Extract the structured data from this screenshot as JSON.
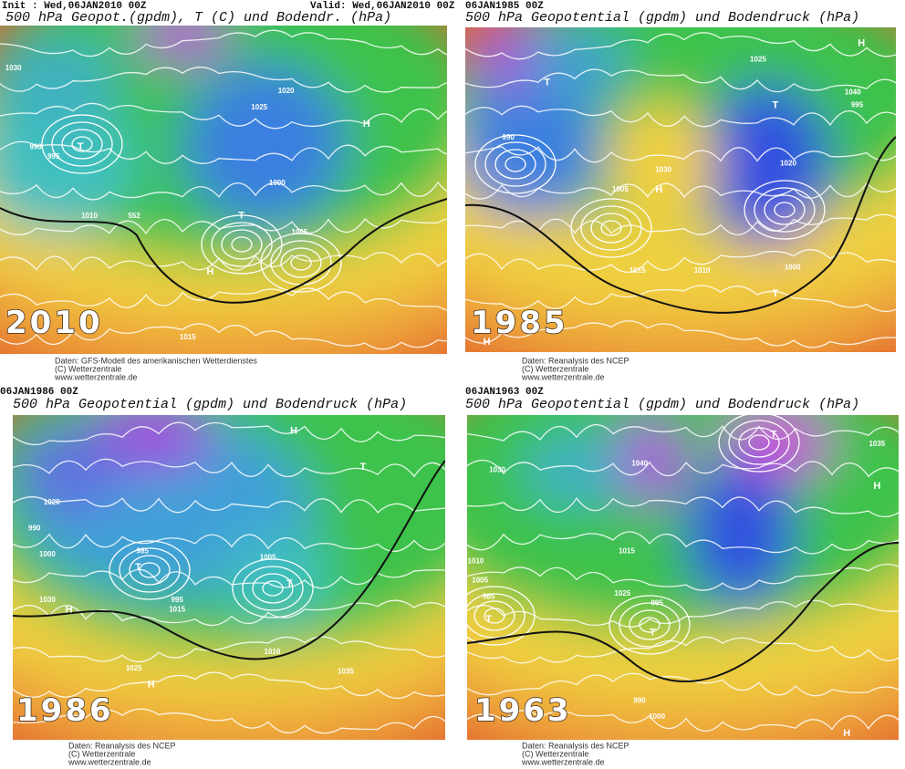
{
  "panels": [
    {
      "header_left": "Init : Wed,06JAN2010 00Z",
      "header_right": "Valid: Wed,06JAN2010 00Z",
      "title": "500 hPa Geopot.(gpdm), T (C) und Bodendr. (hPa)",
      "year": "2010",
      "credits": [
        "Daten: GFS-Modell des amerikanischen Wetterdienstes",
        "(C) Wetterzentrale",
        "www.wetterzentrale.de"
      ],
      "map_labels": [
        "H",
        "H",
        "T",
        "T",
        "1030",
        "1025",
        "1020",
        "1015",
        "1010",
        "1005",
        "1000",
        "995",
        "990",
        "552"
      ]
    },
    {
      "header_left": "06JAN1985 00Z",
      "title": "500 hPa Geopotential (gpdm) und Bodendruck (hPa)",
      "year": "1985",
      "credits": [
        "Daten: Reanalysis des NCEP",
        "(C) Wetterzentrale",
        "www.wetterzentrale.de"
      ],
      "map_labels": [
        "H",
        "H",
        "H",
        "T",
        "T",
        "T",
        "1040",
        "1030",
        "1025",
        "1020",
        "1015",
        "1010",
        "1005",
        "1000",
        "995",
        "990"
      ]
    },
    {
      "header_left": "06JAN1986 00Z",
      "title": "500 hPa Geopotential (gpdm) und Bodendruck (hPa)",
      "year": "1986",
      "credits": [
        "Daten: Reanalysis des NCEP",
        "(C) Wetterzentrale",
        "www.wetterzentrale.de"
      ],
      "map_labels": [
        "H",
        "H",
        "H",
        "T",
        "T",
        "T",
        "1035",
        "1030",
        "1025",
        "1020",
        "1015",
        "1010",
        "1005",
        "1000",
        "995",
        "990",
        "985"
      ]
    },
    {
      "header_left": "06JAN1963 00Z",
      "title": "500 hPa Geopotential (gpdm) und Bodendruck (hPa)",
      "year": "1963",
      "credits": [
        "Daten: Reanalysis des NCEP",
        "(C) Wetterzentrale",
        "www.wetterzentrale.de"
      ],
      "map_labels": [
        "H",
        "H",
        "T",
        "T",
        "T",
        "1040",
        "1035",
        "1030",
        "1025",
        "1015",
        "1010",
        "1005",
        "1000",
        "995",
        "990",
        "985"
      ]
    }
  ]
}
